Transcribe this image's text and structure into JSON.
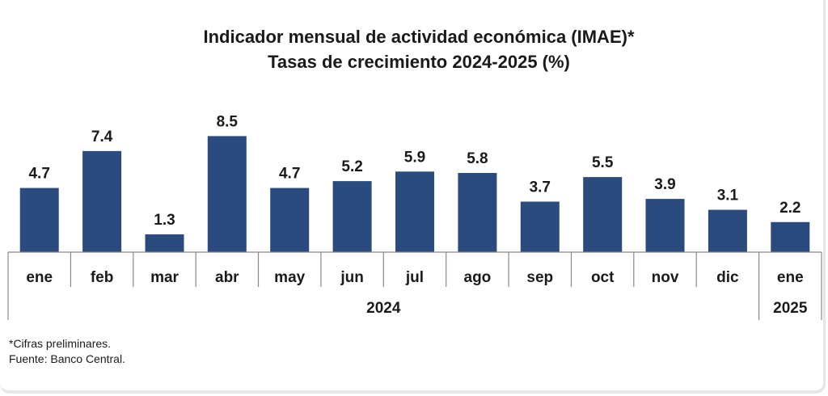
{
  "chart_data": {
    "type": "bar",
    "title_lines": [
      "Indicador mensual de actividad económica (IMAE)*",
      "Tasas de crecimiento 2024-2025 (%)"
    ],
    "categories": [
      "ene",
      "feb",
      "mar",
      "abr",
      "may",
      "jun",
      "jul",
      "ago",
      "sep",
      "oct",
      "nov",
      "dic",
      "ene"
    ],
    "values": [
      4.7,
      7.4,
      1.3,
      8.5,
      4.7,
      5.2,
      5.9,
      5.8,
      3.7,
      5.5,
      3.9,
      3.1,
      2.2
    ],
    "value_labels": [
      "4.7",
      "7.4",
      "1.3",
      "8.5",
      "4.7",
      "5.2",
      "5.9",
      "5.8",
      "3.7",
      "5.5",
      "3.9",
      "3.1",
      "2.2"
    ],
    "year_groups": [
      {
        "label": "2024",
        "count": 12
      },
      {
        "label": "2025",
        "count": 1
      }
    ],
    "bar_color": "#2b4a7d",
    "ylim": [
      0,
      10
    ],
    "grid": false,
    "legend": "none"
  },
  "footnotes": {
    "note": "*Cifras preliminares.",
    "source": "Fuente: Banco Central."
  }
}
